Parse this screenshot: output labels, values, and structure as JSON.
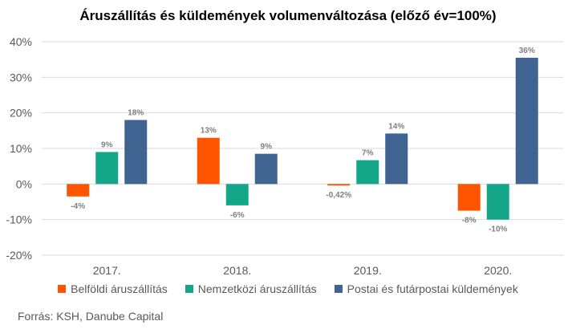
{
  "chart_data": {
    "type": "bar",
    "title": "Áruszállítás és küldemények volumenváltozása (előző év=100%)",
    "categories": [
      "2017.",
      "2018.",
      "2019.",
      "2020."
    ],
    "series": [
      {
        "name": "Belföldi áruszállítás",
        "color": "#ff5500",
        "values": [
          -3.5,
          13,
          -0.42,
          -7.5
        ],
        "labels": [
          "-4%",
          "13%",
          "-0,42%",
          "-8%"
        ]
      },
      {
        "name": "Nemzetközi áruszállítás",
        "color": "#13a688",
        "values": [
          9,
          -6,
          6.7,
          -10
        ],
        "labels": [
          "9%",
          "-6%",
          "7%",
          "-10%"
        ]
      },
      {
        "name": "Postai és futárpostai küldemények",
        "color": "#3f6491",
        "values": [
          18,
          8.5,
          14.2,
          35.5
        ],
        "labels": [
          "18%",
          "9%",
          "14%",
          "36%"
        ]
      }
    ],
    "ylim": [
      -20,
      40
    ],
    "yticks": [
      -20,
      -10,
      0,
      10,
      20,
      30,
      40
    ],
    "ytick_labels": [
      "-20%",
      "-10%",
      "0%",
      "10%",
      "20%",
      "30%",
      "40%"
    ],
    "grid": true,
    "legend_position": "bottom"
  },
  "source": "Forrás: KSH, Danube Capital"
}
